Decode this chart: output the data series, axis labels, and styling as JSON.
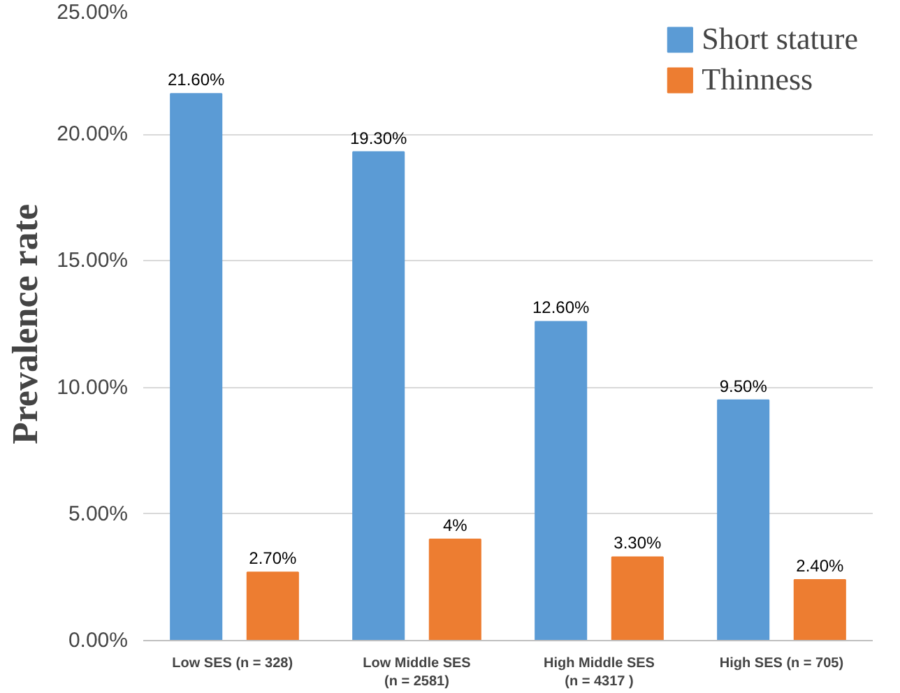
{
  "chart_data": {
    "type": "bar",
    "ylabel": "Prevalence rate",
    "categories": [
      "Low SES  (n = 328)",
      "Low Middle SES\n(n = 2581)",
      "High Middle SES\n(n = 4317 )",
      "High SES (n = 705)"
    ],
    "series": [
      {
        "name": "Short stature",
        "color": "#5b9bd5",
        "values": [
          21.6,
          19.3,
          12.6,
          9.5
        ],
        "value_labels": [
          "21.60%",
          "19.30%",
          "12.60%",
          "9.50%"
        ]
      },
      {
        "name": "Thinness",
        "color": "#ed7d31",
        "values": [
          2.7,
          4,
          3.3,
          2.4
        ],
        "value_labels": [
          "2.70%",
          "4%",
          "3.30%",
          "2.40%"
        ]
      }
    ],
    "ylim": [
      0,
      25
    ],
    "yticks": [
      {
        "value": 0,
        "label": "0.00%"
      },
      {
        "value": 5,
        "label": "5.00%"
      },
      {
        "value": 10,
        "label": "10.00%"
      },
      {
        "value": 15,
        "label": "15.00%"
      },
      {
        "value": 20,
        "label": "20.00%"
      },
      {
        "value": 25,
        "label": "25.00%"
      }
    ],
    "grid": "y",
    "legend": "top right"
  }
}
